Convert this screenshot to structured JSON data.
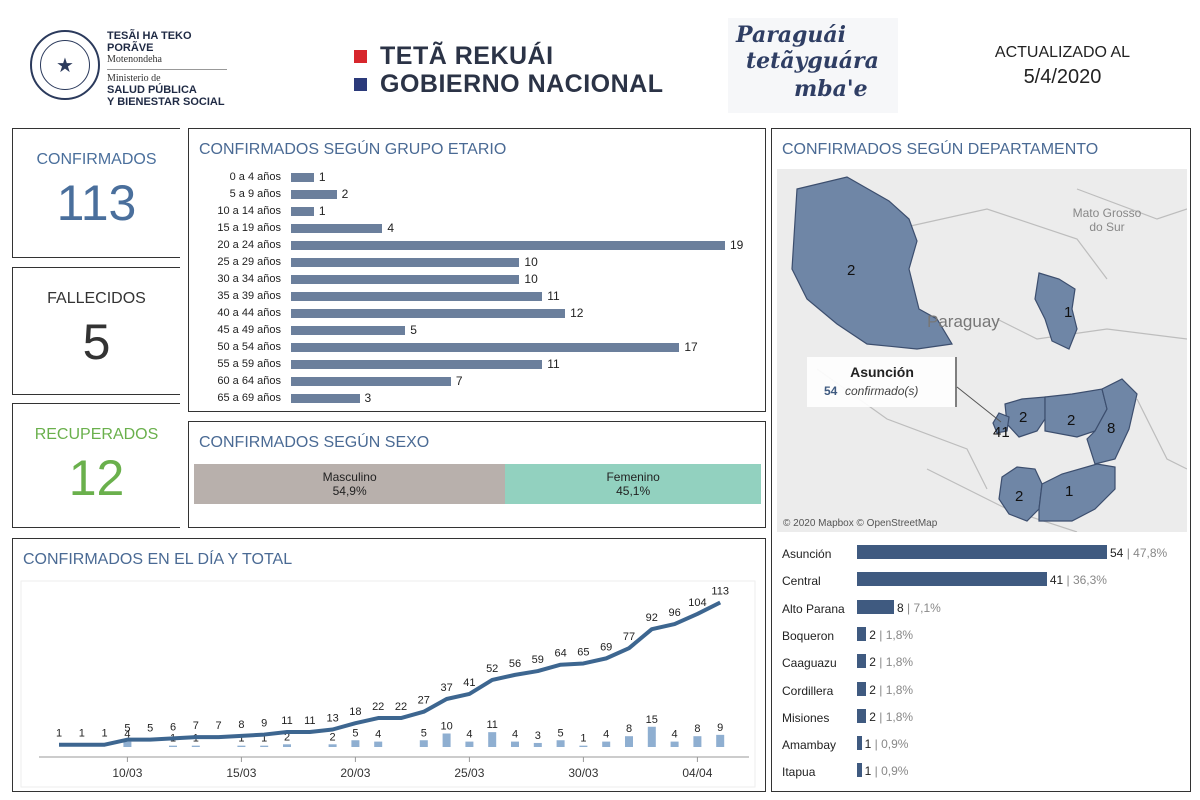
{
  "header": {
    "ministry_line1": "TESÃI HA TEKO",
    "ministry_line2": "PORÃVE",
    "ministry_line3": "Motenondeha",
    "ministry_line4": "Ministerio de",
    "ministry_line5": "SALUD PÚBLICA",
    "ministry_line6": "Y BIENESTAR SOCIAL",
    "gov_line1": "TETÃ REKUÁI",
    "gov_line2": "GOBIERNO NACIONAL",
    "slogan_line1": "Paraguái",
    "slogan_line2": "tetãyguára",
    "slogan_line3": "mba'e",
    "updated_label": "ACTUALIZADO AL",
    "updated_date": "5/4/2020",
    "colors": {
      "red": "#d7262c",
      "navy": "#2b3a7a"
    }
  },
  "kpis": {
    "confirmed_label": "CONFIRMADOS",
    "confirmed_value": "113",
    "deaths_label": "FALLECIDOS",
    "deaths_value": "5",
    "recovered_label": "RECUPERADOS",
    "recovered_value": "12",
    "colors": {
      "confirmed": "#4a6f9c",
      "deaths": "#333333",
      "recovered": "#6ab04c"
    }
  },
  "age_panel": {
    "title": "CONFIRMADOS SEGÚN GRUPO ETARIO"
  },
  "sex_panel": {
    "title": "CONFIRMADOS SEGÚN SEXO"
  },
  "map_panel": {
    "title": "CONFIRMADOS SEGÚN DEPARTAMENTO",
    "country_label": "Paraguay",
    "region_label_1": "Mato Grosso",
    "region_label_2": "do Sur",
    "tooltip_name": "Asunción",
    "tooltip_count": "54",
    "tooltip_suffix": "confirmado(s)",
    "attribution": "© 2020 Mapbox © OpenStreetMap",
    "map_numbers": [
      "2",
      "1",
      "2",
      "2",
      "41",
      "8",
      "2",
      "1"
    ]
  },
  "daily_panel": {
    "title": "CONFIRMADOS EN EL DÍA Y TOTAL"
  },
  "chart_data": [
    {
      "type": "bar",
      "orientation": "horizontal",
      "title": "CONFIRMADOS SEGÚN GRUPO ETARIO",
      "categories": [
        "0 a 4 años",
        "5 a 9 años",
        "10 a 14 años",
        "15 a 19 años",
        "20 a 24 años",
        "25 a 29 años",
        "30 a 34 años",
        "35 a 39 años",
        "40 a 44 años",
        "45 a 49 años",
        "50 a 54 años",
        "55 a 59 años",
        "60 a 64 años",
        "65 a 69 años"
      ],
      "values": [
        1,
        2,
        1,
        4,
        19,
        10,
        10,
        11,
        12,
        5,
        17,
        11,
        7,
        3
      ],
      "color": "#6b7f9c"
    },
    {
      "type": "bar",
      "orientation": "stacked-100",
      "title": "CONFIRMADOS SEGÚN SEXO",
      "categories": [
        "Masculino",
        "Femenino"
      ],
      "values": [
        54.9,
        45.1
      ],
      "labels": [
        "54,9%",
        "45,1%"
      ],
      "colors": [
        "#b8b0ac",
        "#92d1bf"
      ]
    },
    {
      "type": "bar",
      "orientation": "horizontal",
      "title": "CONFIRMADOS SEGÚN DEPARTAMENTO",
      "categories": [
        "Asunción",
        "Central",
        "Alto Parana",
        "Boqueron",
        "Caaguazu",
        "Cordillera",
        "Misiones",
        "Amambay",
        "Itapua"
      ],
      "values": [
        54,
        41,
        8,
        2,
        2,
        2,
        2,
        1,
        1
      ],
      "percent_labels": [
        "47,8%",
        "36,3%",
        "7,1%",
        "1,8%",
        "1,8%",
        "1,8%",
        "1,8%",
        "0,9%",
        "0,9%"
      ],
      "color": "#3f5a80"
    },
    {
      "type": "line",
      "title": "CONFIRMADOS EN EL DÍA Y TOTAL",
      "x": [
        "07/03",
        "08/03",
        "09/03",
        "10/03",
        "11/03",
        "12/03",
        "13/03",
        "14/03",
        "15/03",
        "16/03",
        "17/03",
        "18/03",
        "19/03",
        "20/03",
        "21/03",
        "22/03",
        "23/03",
        "24/03",
        "25/03",
        "26/03",
        "27/03",
        "28/03",
        "29/03",
        "30/03",
        "31/03",
        "01/04",
        "02/04",
        "03/04",
        "04/04",
        "05/04"
      ],
      "x_tick_labels": [
        "10/03",
        "15/03",
        "20/03",
        "25/03",
        "30/03",
        "04/04"
      ],
      "series": [
        {
          "name": "",
          "style": "line",
          "color": "#3d6690",
          "values": [
            1,
            1,
            1,
            5,
            5,
            6,
            7,
            7,
            8,
            9,
            11,
            11,
            13,
            18,
            22,
            22,
            27,
            37,
            41,
            52,
            56,
            59,
            64,
            65,
            69,
            77,
            92,
            96,
            104,
            113
          ]
        },
        {
          "name": "",
          "style": "bar",
          "color": "#8fafd1",
          "values": [
            null,
            null,
            null,
            4,
            null,
            1,
            1,
            null,
            1,
            1,
            2,
            null,
            2,
            5,
            4,
            null,
            5,
            10,
            4,
            11,
            4,
            3,
            5,
            1,
            4,
            8,
            15,
            4,
            8,
            9
          ]
        }
      ],
      "ylim": [
        0,
        120
      ],
      "grid": false
    }
  ]
}
